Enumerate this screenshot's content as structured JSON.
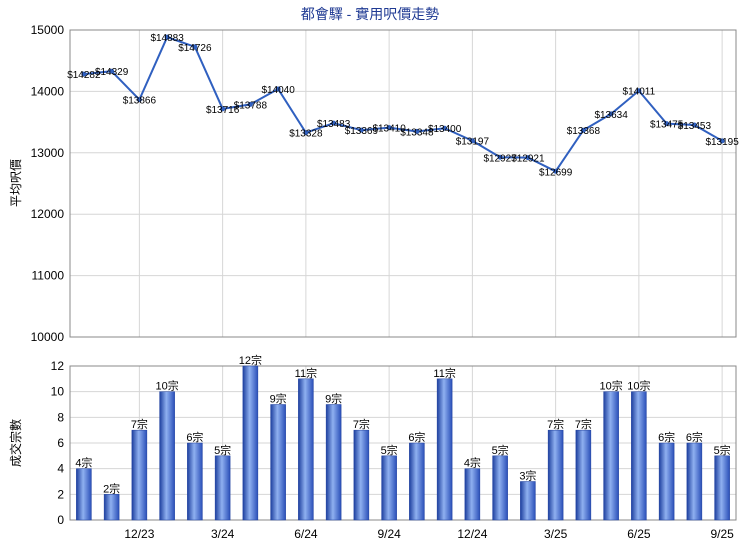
{
  "chart_data": [
    {
      "type": "line",
      "title": "都會驛 - 實用呎價走勢",
      "ylabel": "平均呎價",
      "ylim": [
        10000,
        15000
      ],
      "yticks": [
        10000,
        11000,
        12000,
        13000,
        14000,
        15000
      ],
      "grid": true,
      "color": "#3060c0",
      "labels": [
        "$14282",
        "$14329",
        "$13866",
        "$14883",
        "$14726",
        "$13716",
        "$13788",
        "$14040",
        "$13328",
        "$13483",
        "$13369",
        "$13410",
        "$13348",
        "$13400",
        "$13197",
        "$12927",
        "$12921",
        "$12699",
        "$13368",
        "$13634",
        "$14011",
        "$13475",
        "$13453",
        "$13195"
      ],
      "values": [
        14282,
        14329,
        13866,
        14883,
        14726,
        13716,
        13788,
        14040,
        13328,
        13483,
        13369,
        13410,
        13348,
        13400,
        13197,
        12927,
        12921,
        12699,
        13368,
        13634,
        14011,
        13475,
        13453,
        13195
      ]
    },
    {
      "type": "bar",
      "ylabel": "成交宗數",
      "ylim": [
        0,
        12
      ],
      "yticks": [
        0,
        2,
        4,
        6,
        8,
        10,
        12
      ],
      "grid": true,
      "color": "#3a64c8",
      "labels": [
        "4宗",
        "2宗",
        "7宗",
        "10宗",
        "6宗",
        "5宗",
        "12宗",
        "9宗",
        "11宗",
        "9宗",
        "7宗",
        "5宗",
        "6宗",
        "11宗",
        "4宗",
        "5宗",
        "3宗",
        "7宗",
        "7宗",
        "10宗",
        "10宗",
        "6宗",
        "6宗",
        "5宗"
      ],
      "values": [
        4,
        2,
        7,
        10,
        6,
        5,
        12,
        9,
        11,
        9,
        7,
        5,
        6,
        11,
        4,
        5,
        3,
        7,
        7,
        10,
        10,
        6,
        6,
        5
      ],
      "xticks": [
        {
          "label": "12/23",
          "index": 2.5
        },
        {
          "label": "3/24",
          "index": 5.5
        },
        {
          "label": "6/24",
          "index": 8.5
        },
        {
          "label": "9/24",
          "index": 11.5
        },
        {
          "label": "12/24",
          "index": 14.5
        },
        {
          "label": "3/25",
          "index": 17.5
        },
        {
          "label": "6/25",
          "index": 20.5
        },
        {
          "label": "9/25",
          "index": 23.5
        }
      ]
    }
  ]
}
